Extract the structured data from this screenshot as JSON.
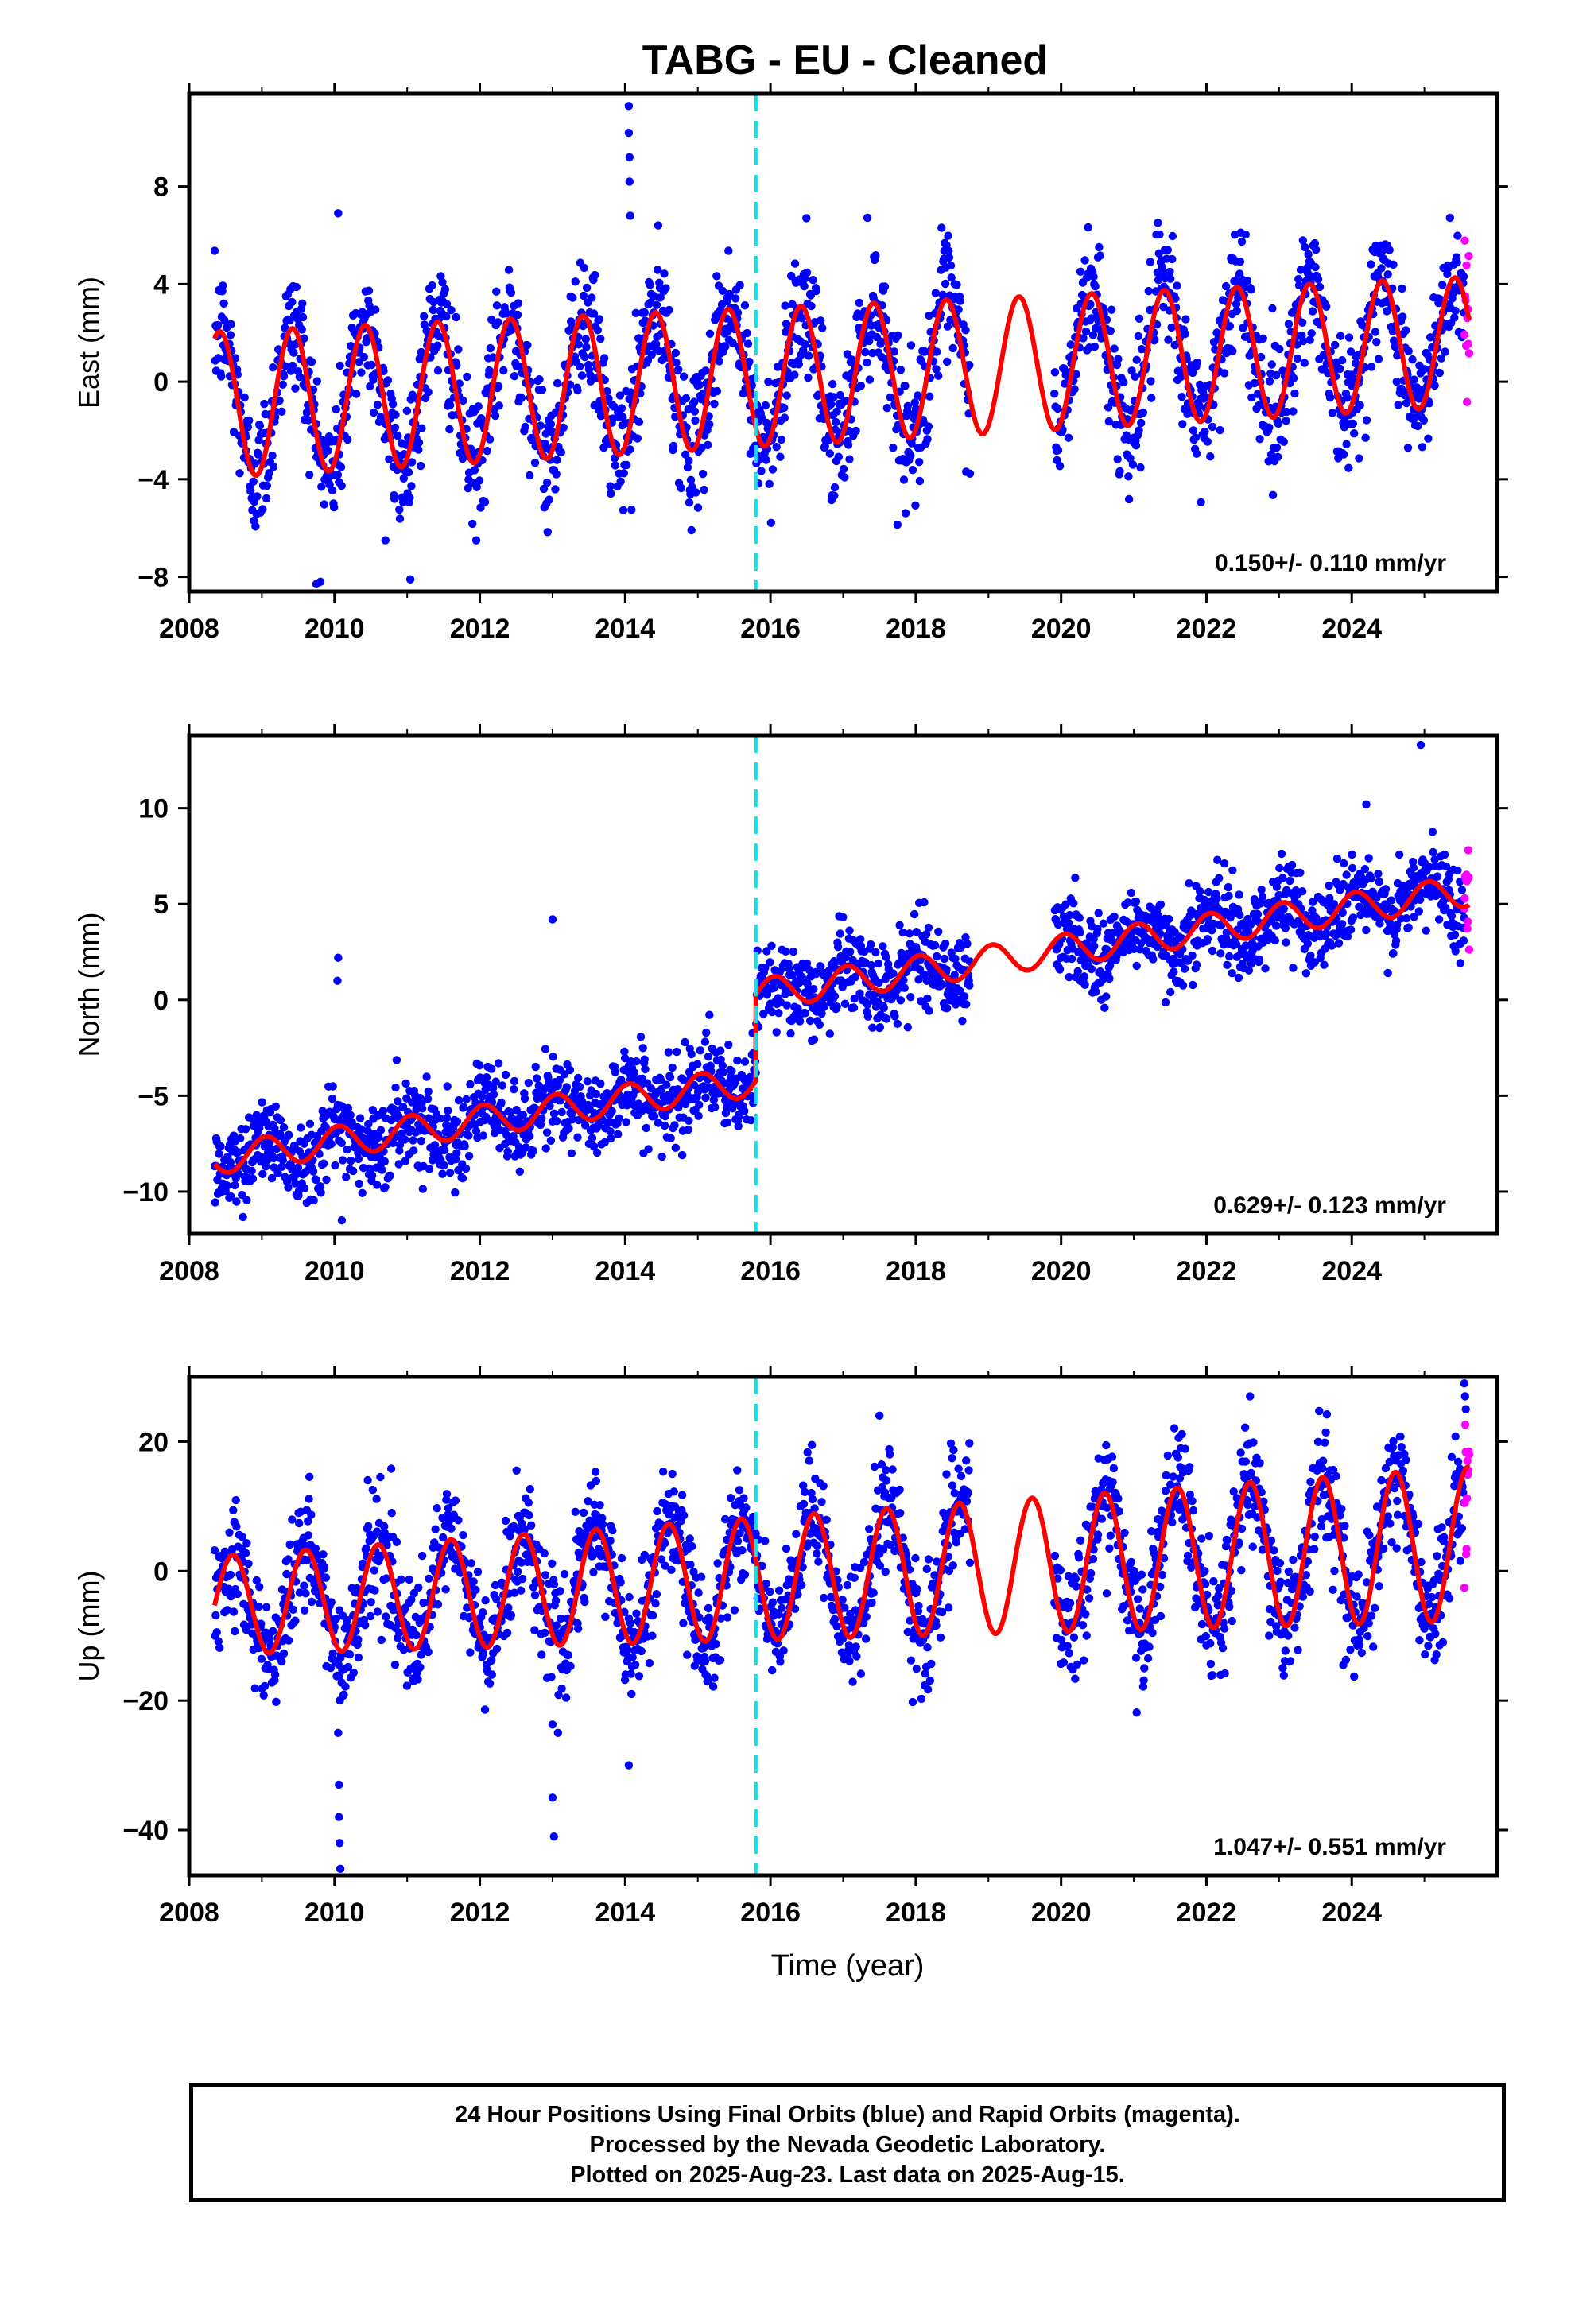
{
  "title": "TABG  - EU - Cleaned",
  "xlabel": "Time (year)",
  "colors": {
    "final": "#0000ff",
    "rapid": "#ff00ff",
    "model": "#ff0000",
    "offset": "#00e5ee"
  },
  "footer": {
    "line1": "24 Hour Positions Using Final Orbits (blue) and Rapid Orbits (magenta).",
    "line2": "Processed by the Nevada Geodetic Laboratory.",
    "line3": "Plotted on 2025-Aug-23. Last data on 2025-Aug-15."
  },
  "chart_data": [
    {
      "type": "scatter",
      "ylabel": "East (mm)",
      "rate_label": "0.150+/- 0.110 mm/yr",
      "xlim": [
        2008,
        2026
      ],
      "ylim": [
        -8.6,
        11.8
      ],
      "xticks": [
        2008,
        2010,
        2012,
        2014,
        2016,
        2018,
        2020,
        2022,
        2024
      ],
      "yticks": [
        -8,
        -4,
        0,
        4,
        8
      ],
      "offset_year": 2015.8,
      "data_start": 2008.35,
      "data_end": 2025.62,
      "rapid_start": 2025.55,
      "gap": [
        2018.75,
        2019.9
      ],
      "model": {
        "trend": 0.15,
        "intercept": -1.0,
        "amplitude": 3.0,
        "amplitude_growth": -0.02,
        "phase_peak": 0.42,
        "step": 0.0,
        "intercept_year": 2008
      },
      "scatter_sd": 1.3,
      "outliers": [
        {
          "x": 2014.05,
          "y": 11.3
        },
        {
          "x": 2014.05,
          "y": 10.2
        },
        {
          "x": 2014.06,
          "y": 9.2
        },
        {
          "x": 2014.06,
          "y": 8.2
        },
        {
          "x": 2014.07,
          "y": 6.8
        },
        {
          "x": 2010.05,
          "y": 6.9
        },
        {
          "x": 2009.75,
          "y": -8.3
        },
        {
          "x": 2010.7,
          "y": -6.5
        }
      ]
    },
    {
      "type": "scatter",
      "ylabel": "North (mm)",
      "rate_label": "0.629+/- 0.123 mm/yr",
      "xlim": [
        2008,
        2026
      ],
      "ylim": [
        -12.2,
        13.8
      ],
      "xticks": [
        2008,
        2010,
        2012,
        2014,
        2016,
        2018,
        2020,
        2022,
        2024
      ],
      "yticks": [
        -10,
        -5,
        0,
        5,
        10
      ],
      "offset_year": 2015.8,
      "data_start": 2008.35,
      "data_end": 2025.62,
      "rapid_start": 2025.55,
      "gap": [
        2018.75,
        2019.9
      ],
      "model": {
        "trend": 0.55,
        "intercept": -8.5,
        "amplitude": 0.8,
        "amplitude_growth": 0.0,
        "phase_peak": 0.05,
        "step": 4.5,
        "intercept_year": 2008
      },
      "scatter_sd": 1.1,
      "outliers": [
        {
          "x": 2010.05,
          "y": 2.2
        },
        {
          "x": 2010.04,
          "y": 1.0
        },
        {
          "x": 2013.0,
          "y": 4.2
        },
        {
          "x": 2024.95,
          "y": 13.3
        },
        {
          "x": 2024.2,
          "y": 10.2
        },
        {
          "x": 2010.1,
          "y": -11.5
        }
      ]
    },
    {
      "type": "scatter",
      "ylabel": "Up (mm)",
      "rate_label": "1.047+/- 0.551 mm/yr",
      "xlim": [
        2008,
        2026
      ],
      "ylim": [
        -47,
        30
      ],
      "xticks": [
        2008,
        2010,
        2012,
        2014,
        2016,
        2018,
        2020,
        2022,
        2024
      ],
      "yticks": [
        -40,
        -20,
        0,
        20
      ],
      "offset_year": 2015.8,
      "data_start": 2008.35,
      "data_end": 2025.62,
      "rapid_start": 2025.55,
      "gap": [
        2018.75,
        2019.9
      ],
      "model": {
        "trend": 0.55,
        "intercept": -5.5,
        "amplitude": 7.5,
        "amplitude_growth": 0.25,
        "phase_peak": 0.6,
        "step": 0.0,
        "intercept_year": 2008
      },
      "scatter_sd": 4.5,
      "outliers": [
        {
          "x": 2010.05,
          "y": -25
        },
        {
          "x": 2010.06,
          "y": -33
        },
        {
          "x": 2010.06,
          "y": -38
        },
        {
          "x": 2010.07,
          "y": -42
        },
        {
          "x": 2010.08,
          "y": -46
        },
        {
          "x": 2013.0,
          "y": -35
        },
        {
          "x": 2013.02,
          "y": -41
        },
        {
          "x": 2014.05,
          "y": -30
        },
        {
          "x": 2017.5,
          "y": 24
        },
        {
          "x": 2022.6,
          "y": 27
        },
        {
          "x": 2025.55,
          "y": 29
        },
        {
          "x": 2025.56,
          "y": 27
        },
        {
          "x": 2025.57,
          "y": 25
        }
      ]
    }
  ]
}
